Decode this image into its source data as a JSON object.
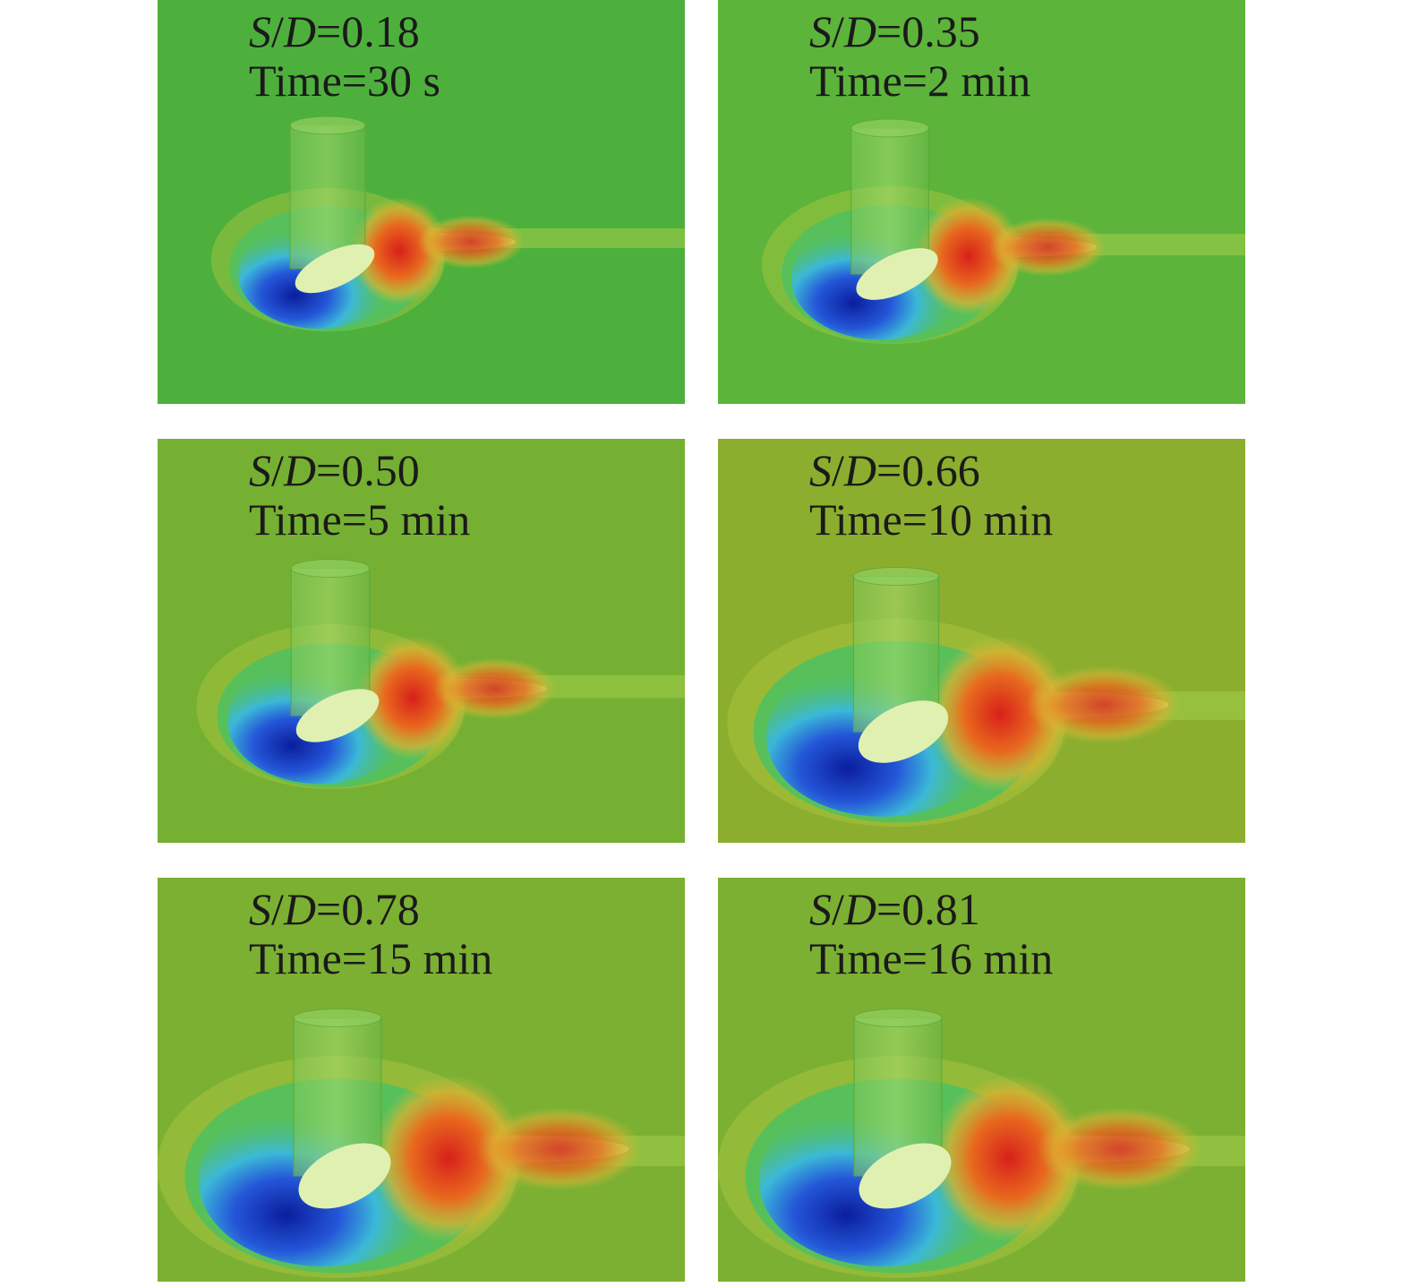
{
  "panels": [
    {
      "ratio": "S/D=0.18",
      "time": "Time=30 s"
    },
    {
      "ratio": "S/D=0.35",
      "time": "Time=2 min"
    },
    {
      "ratio": "S/D=0.50",
      "time": "Time=5 min"
    },
    {
      "ratio": "S/D=0.66",
      "time": "Time=10 min"
    },
    {
      "ratio": "S/D=0.78",
      "time": "Time=15 min"
    },
    {
      "ratio": "S/D=0.81",
      "time": "Time=16 min"
    }
  ]
}
